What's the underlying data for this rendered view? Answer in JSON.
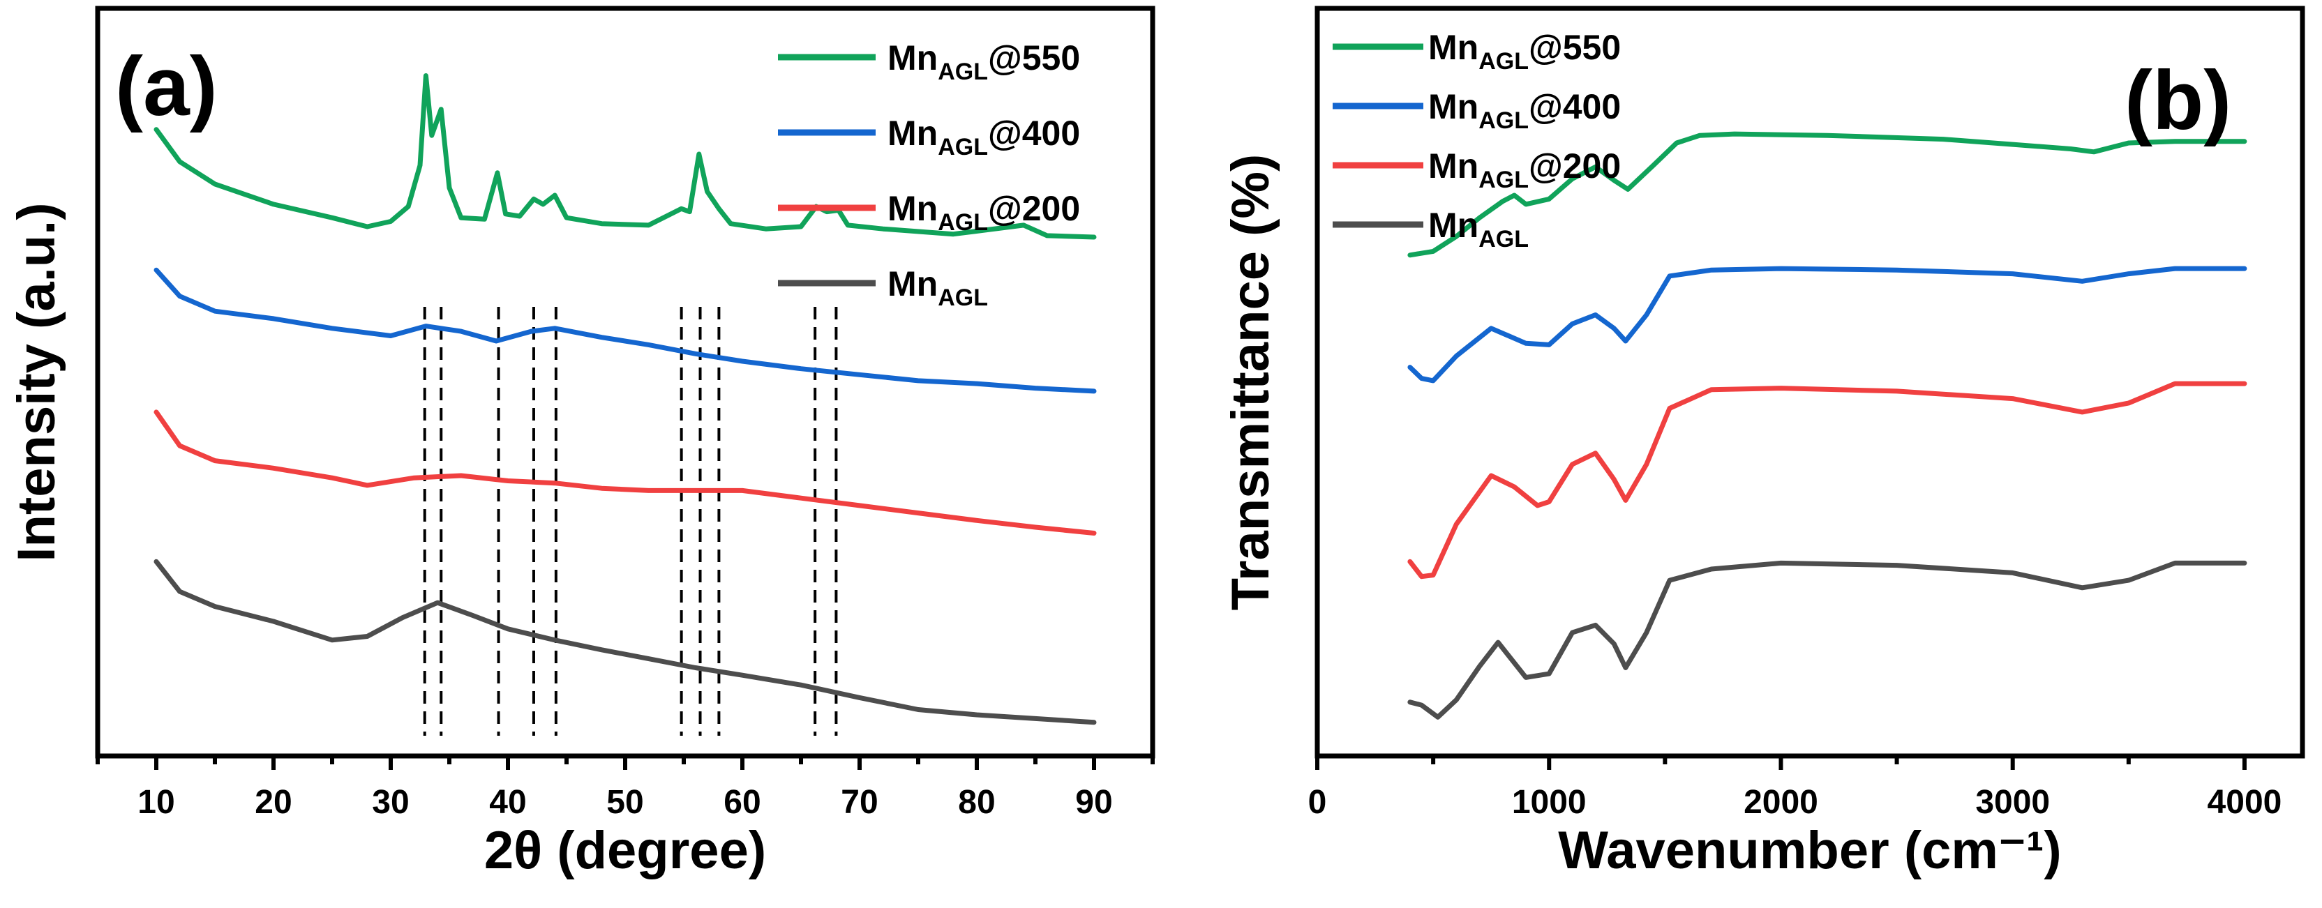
{
  "chart_data": [
    {
      "panel": "(a)",
      "type": "line",
      "xlabel": "2θ (degree)",
      "ylabel": "Intensity (a.u.)",
      "xlim": [
        5,
        95
      ],
      "x_ticks": [
        10,
        20,
        30,
        40,
        50,
        60,
        70,
        80,
        90
      ],
      "ylim": [
        0,
        10
      ],
      "y_ticks_shown": false,
      "legend_position": "top-right",
      "reference_lines_2theta": [
        32.9,
        34.3,
        39.2,
        42.2,
        44.1,
        54.8,
        56.4,
        58.0,
        66.2,
        68.0
      ],
      "series": [
        {
          "name": "Mn_AGL@550",
          "legend_main": "Mn",
          "legend_sub": "AGL",
          "legend_suffix": "@550",
          "color": "#10a35a",
          "points": [
            [
              10,
              8.38
            ],
            [
              12,
              7.95
            ],
            [
              15,
              7.65
            ],
            [
              20,
              7.38
            ],
            [
              25,
              7.2
            ],
            [
              28,
              7.08
            ],
            [
              30,
              7.15
            ],
            [
              31.5,
              7.35
            ],
            [
              32.5,
              7.9
            ],
            [
              33.0,
              9.1
            ],
            [
              33.5,
              8.3
            ],
            [
              34.3,
              8.65
            ],
            [
              35.0,
              7.6
            ],
            [
              36,
              7.2
            ],
            [
              38,
              7.18
            ],
            [
              39.1,
              7.8
            ],
            [
              39.8,
              7.25
            ],
            [
              41,
              7.22
            ],
            [
              42.2,
              7.45
            ],
            [
              43,
              7.38
            ],
            [
              44.0,
              7.5
            ],
            [
              45,
              7.2
            ],
            [
              48,
              7.12
            ],
            [
              52,
              7.1
            ],
            [
              54.8,
              7.32
            ],
            [
              55.5,
              7.28
            ],
            [
              56.3,
              8.05
            ],
            [
              57.0,
              7.55
            ],
            [
              58.0,
              7.32
            ],
            [
              59,
              7.12
            ],
            [
              62,
              7.05
            ],
            [
              65,
              7.08
            ],
            [
              66.3,
              7.35
            ],
            [
              67.2,
              7.28
            ],
            [
              68.2,
              7.3
            ],
            [
              69,
              7.1
            ],
            [
              72,
              7.05
            ],
            [
              78,
              6.98
            ],
            [
              84,
              7.1
            ],
            [
              86,
              6.96
            ],
            [
              90,
              6.94
            ]
          ]
        },
        {
          "name": "Mn_AGL@400",
          "legend_main": "Mn",
          "legend_sub": "AGL",
          "legend_suffix": "@400",
          "color": "#1466cf",
          "points": [
            [
              10,
              6.5
            ],
            [
              12,
              6.15
            ],
            [
              15,
              5.95
            ],
            [
              20,
              5.85
            ],
            [
              25,
              5.72
            ],
            [
              30,
              5.62
            ],
            [
              33,
              5.75
            ],
            [
              36,
              5.68
            ],
            [
              39,
              5.55
            ],
            [
              42,
              5.68
            ],
            [
              44,
              5.72
            ],
            [
              48,
              5.6
            ],
            [
              52,
              5.5
            ],
            [
              56,
              5.38
            ],
            [
              60,
              5.28
            ],
            [
              65,
              5.18
            ],
            [
              70,
              5.1
            ],
            [
              75,
              5.02
            ],
            [
              80,
              4.98
            ],
            [
              85,
              4.92
            ],
            [
              90,
              4.88
            ]
          ]
        },
        {
          "name": "Mn_AGL@200",
          "legend_main": "Mn",
          "legend_sub": "AGL",
          "legend_suffix": "@200",
          "color": "#f04040",
          "points": [
            [
              10,
              4.6
            ],
            [
              12,
              4.15
            ],
            [
              15,
              3.95
            ],
            [
              20,
              3.85
            ],
            [
              25,
              3.72
            ],
            [
              28,
              3.62
            ],
            [
              32,
              3.72
            ],
            [
              36,
              3.75
            ],
            [
              40,
              3.68
            ],
            [
              44,
              3.65
            ],
            [
              48,
              3.58
            ],
            [
              52,
              3.55
            ],
            [
              56,
              3.55
            ],
            [
              60,
              3.55
            ],
            [
              65,
              3.45
            ],
            [
              70,
              3.35
            ],
            [
              75,
              3.25
            ],
            [
              80,
              3.15
            ],
            [
              85,
              3.06
            ],
            [
              90,
              2.98
            ]
          ]
        },
        {
          "name": "Mn_AGL",
          "legend_main": "Mn",
          "legend_sub": "AGL",
          "legend_suffix": "",
          "color": "#4d4d4d",
          "points": [
            [
              10,
              2.6
            ],
            [
              12,
              2.2
            ],
            [
              15,
              2.0
            ],
            [
              20,
              1.8
            ],
            [
              25,
              1.55
            ],
            [
              28,
              1.6
            ],
            [
              31,
              1.85
            ],
            [
              34,
              2.05
            ],
            [
              37,
              1.88
            ],
            [
              40,
              1.7
            ],
            [
              44,
              1.55
            ],
            [
              48,
              1.42
            ],
            [
              52,
              1.3
            ],
            [
              56,
              1.18
            ],
            [
              60,
              1.08
            ],
            [
              65,
              0.95
            ],
            [
              70,
              0.78
            ],
            [
              75,
              0.62
            ],
            [
              80,
              0.55
            ],
            [
              85,
              0.5
            ],
            [
              90,
              0.45
            ]
          ]
        }
      ]
    },
    {
      "panel": "(b)",
      "type": "line",
      "xlabel": "Wavenumber (cm⁻¹)",
      "ylabel": "Transmittance (%)",
      "xlim": [
        0,
        4250
      ],
      "x_ticks": [
        0,
        1000,
        2000,
        3000,
        4000
      ],
      "ylim": [
        0,
        10
      ],
      "y_ticks_shown": false,
      "legend_position": "top-left",
      "series": [
        {
          "name": "Mn_AGL@550",
          "legend_main": "Mn",
          "legend_sub": "AGL",
          "legend_suffix": "@550",
          "color": "#10a35a",
          "points": [
            [
              400,
              6.7
            ],
            [
              500,
              6.75
            ],
            [
              600,
              6.95
            ],
            [
              700,
              7.2
            ],
            [
              800,
              7.42
            ],
            [
              850,
              7.5
            ],
            [
              900,
              7.38
            ],
            [
              1000,
              7.45
            ],
            [
              1100,
              7.72
            ],
            [
              1200,
              7.88
            ],
            [
              1280,
              7.7
            ],
            [
              1340,
              7.58
            ],
            [
              1450,
              7.9
            ],
            [
              1550,
              8.2
            ],
            [
              1650,
              8.3
            ],
            [
              1800,
              8.32
            ],
            [
              2200,
              8.3
            ],
            [
              2700,
              8.25
            ],
            [
              3000,
              8.18
            ],
            [
              3250,
              8.12
            ],
            [
              3350,
              8.08
            ],
            [
              3500,
              8.2
            ],
            [
              3700,
              8.22
            ],
            [
              4000,
              8.22
            ]
          ]
        },
        {
          "name": "Mn_AGL@400",
          "legend_main": "Mn",
          "legend_sub": "AGL",
          "legend_suffix": "@400",
          "color": "#1466cf",
          "points": [
            [
              400,
              5.2
            ],
            [
              450,
              5.05
            ],
            [
              500,
              5.02
            ],
            [
              600,
              5.35
            ],
            [
              750,
              5.72
            ],
            [
              900,
              5.52
            ],
            [
              1000,
              5.5
            ],
            [
              1100,
              5.78
            ],
            [
              1200,
              5.9
            ],
            [
              1280,
              5.72
            ],
            [
              1330,
              5.55
            ],
            [
              1420,
              5.9
            ],
            [
              1520,
              6.42
            ],
            [
              1700,
              6.5
            ],
            [
              2000,
              6.52
            ],
            [
              2500,
              6.5
            ],
            [
              3000,
              6.45
            ],
            [
              3300,
              6.35
            ],
            [
              3500,
              6.45
            ],
            [
              3700,
              6.52
            ],
            [
              4000,
              6.52
            ]
          ]
        },
        {
          "name": "Mn_AGL@200",
          "legend_main": "Mn",
          "legend_sub": "AGL",
          "legend_suffix": "@200",
          "color": "#f04040",
          "points": [
            [
              400,
              2.6
            ],
            [
              450,
              2.4
            ],
            [
              500,
              2.42
            ],
            [
              600,
              3.1
            ],
            [
              750,
              3.75
            ],
            [
              850,
              3.6
            ],
            [
              950,
              3.35
            ],
            [
              1000,
              3.4
            ],
            [
              1100,
              3.9
            ],
            [
              1200,
              4.05
            ],
            [
              1280,
              3.7
            ],
            [
              1330,
              3.42
            ],
            [
              1420,
              3.9
            ],
            [
              1520,
              4.65
            ],
            [
              1700,
              4.9
            ],
            [
              2000,
              4.92
            ],
            [
              2500,
              4.88
            ],
            [
              3000,
              4.78
            ],
            [
              3300,
              4.6
            ],
            [
              3500,
              4.72
            ],
            [
              3700,
              4.98
            ],
            [
              4000,
              4.98
            ]
          ]
        },
        {
          "name": "Mn_AGL",
          "legend_main": "Mn",
          "legend_sub": "AGL",
          "legend_suffix": "",
          "color": "#4d4d4d",
          "points": [
            [
              400,
              0.72
            ],
            [
              450,
              0.68
            ],
            [
              520,
              0.52
            ],
            [
              600,
              0.75
            ],
            [
              700,
              1.2
            ],
            [
              780,
              1.52
            ],
            [
              900,
              1.05
            ],
            [
              1000,
              1.1
            ],
            [
              1100,
              1.65
            ],
            [
              1200,
              1.75
            ],
            [
              1280,
              1.5
            ],
            [
              1330,
              1.18
            ],
            [
              1420,
              1.65
            ],
            [
              1520,
              2.35
            ],
            [
              1700,
              2.5
            ],
            [
              2000,
              2.58
            ],
            [
              2500,
              2.55
            ],
            [
              3000,
              2.45
            ],
            [
              3300,
              2.25
            ],
            [
              3500,
              2.35
            ],
            [
              3700,
              2.58
            ],
            [
              4000,
              2.58
            ]
          ]
        }
      ]
    }
  ]
}
